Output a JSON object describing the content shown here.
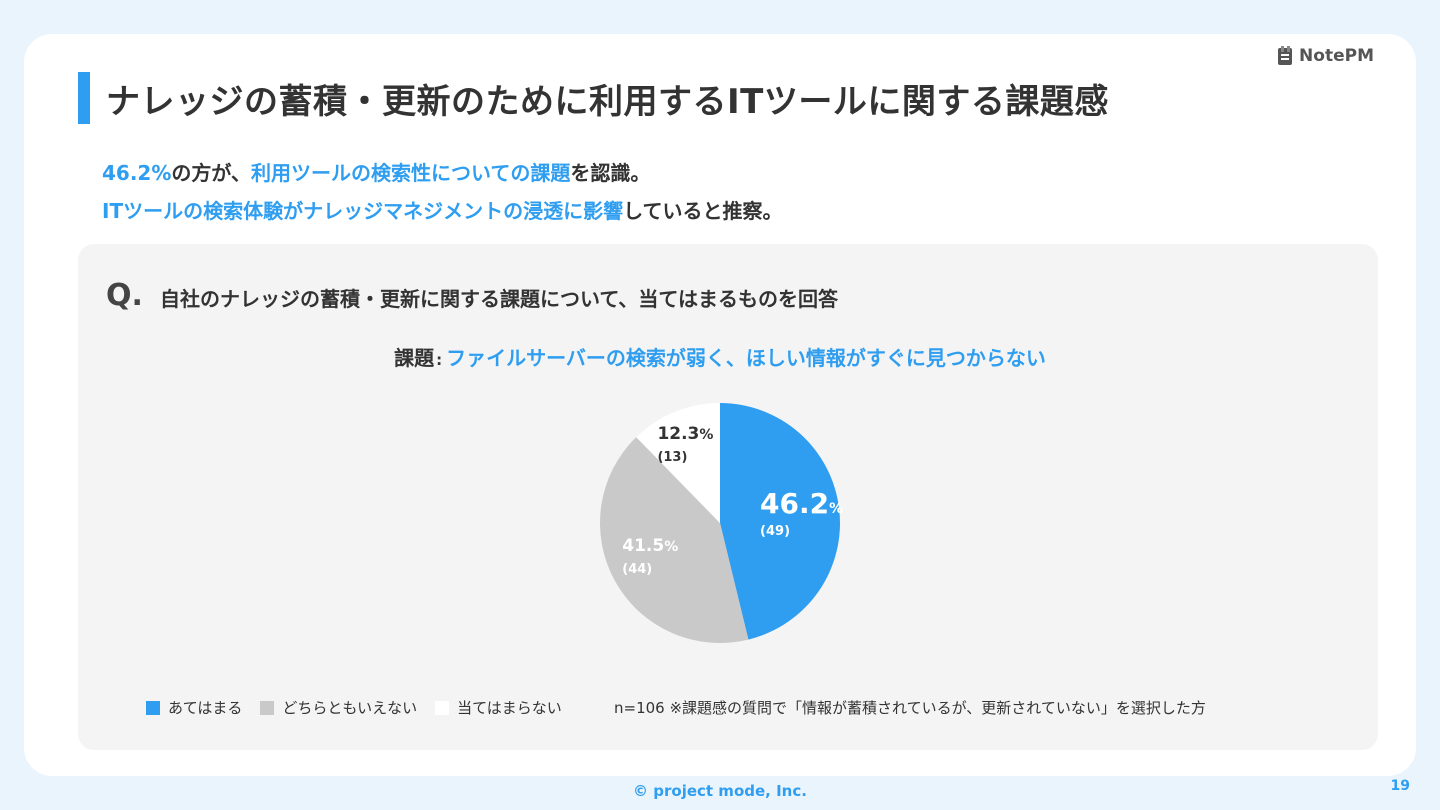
{
  "brand": {
    "logo_text": "NotePM",
    "accent": "#2f9ef0"
  },
  "title": "ナレッジの蓄積・更新のために利用するITツールに関する課題感",
  "summary": {
    "line1": [
      {
        "text": "46.2%",
        "hl": true
      },
      {
        "text": "の方が、",
        "hl": false
      },
      {
        "text": "利用ツールの検索性についての課題",
        "hl": true
      },
      {
        "text": "を認識。",
        "hl": false
      }
    ],
    "line2": [
      {
        "text": "ITツールの検索体験がナレッジマネジメントの浸透に影響",
        "hl": true
      },
      {
        "text": "していると推察。",
        "hl": false
      }
    ]
  },
  "question": {
    "mark": "Q.",
    "text": "自社のナレッジの蓄積・更新に関する課題について、当てはまるものを回答"
  },
  "issue": {
    "label": "課題",
    "sep": ":",
    "text": "ファイルサーバーの検索が弱く、ほしい情報がすぐに見つからない"
  },
  "chart_data": {
    "type": "pie",
    "slices": [
      {
        "name": "あてはまる",
        "value": 46.2,
        "count": 49,
        "pct_text": "46.2",
        "count_text": "(49)",
        "color": "#2f9ef0"
      },
      {
        "name": "どちらともいえない",
        "value": 41.5,
        "count": 44,
        "pct_text": "41.5",
        "count_text": "(44)",
        "color": "#c9c9c9"
      },
      {
        "name": "当てはまらない",
        "value": 12.3,
        "count": 13,
        "pct_text": "12.3",
        "count_text": "(13)",
        "color": "#ffffff"
      }
    ],
    "unit": "%",
    "start": "12 o'clock",
    "direction": "clockwise",
    "legend_position": "bottom-left"
  },
  "note": "n=106   ※課題感の質問で「情報が蓄積されているが、更新されていない」を選択した方",
  "footer": "© project mode, Inc.",
  "page_number": "19"
}
